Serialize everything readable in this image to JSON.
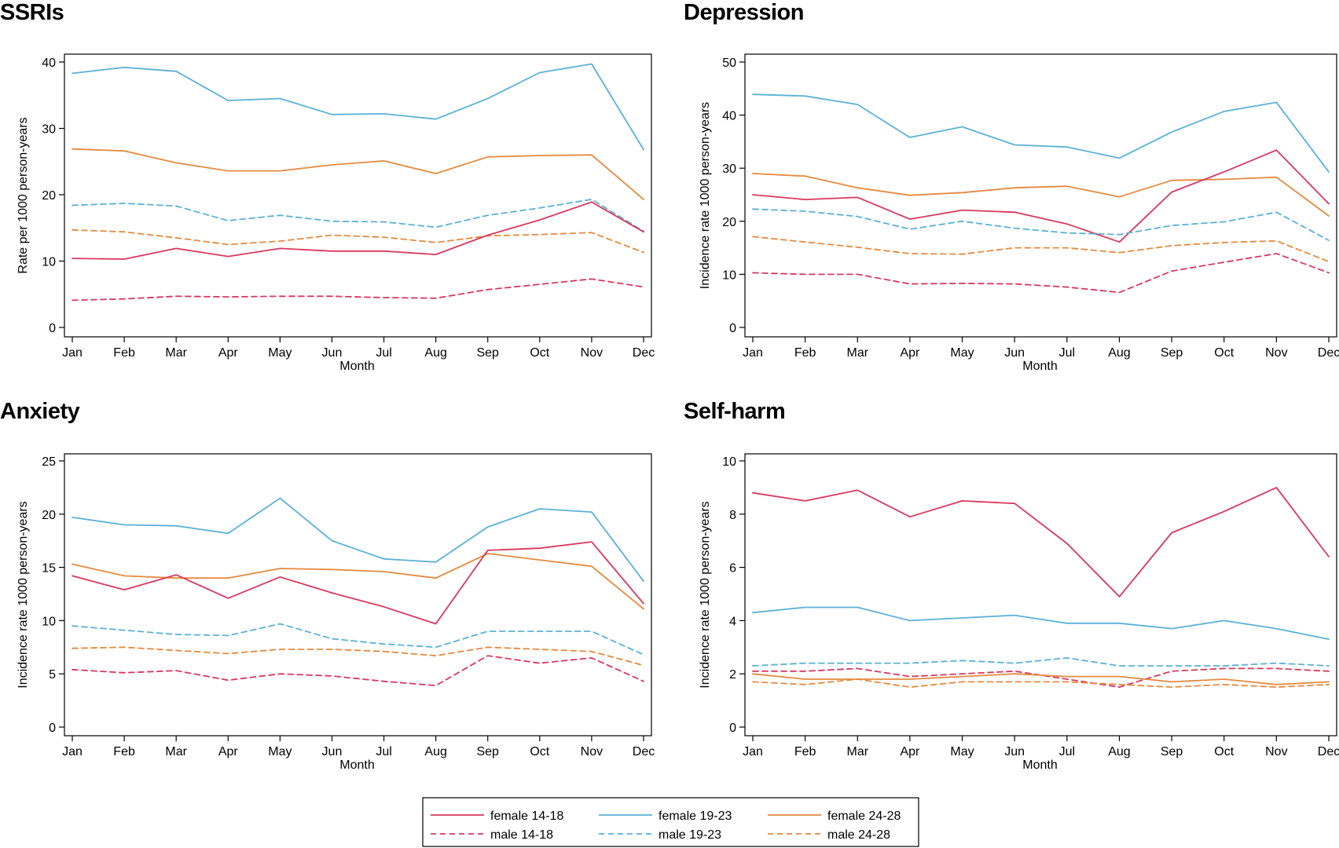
{
  "colors": {
    "female_14_18": "#d9385e",
    "male_14_18": "#d9385e",
    "female_19_23": "#5ab1d6",
    "male_19_23": "#5ab1d6",
    "female_24_28": "#e58a3e",
    "male_24_28": "#e58a3e"
  },
  "legend": {
    "items": [
      {
        "key": "female_14_18",
        "label": "female 14-18",
        "dashed": false
      },
      {
        "key": "female_19_23",
        "label": "female 19-23",
        "dashed": false
      },
      {
        "key": "female_24_28",
        "label": "female 24-28",
        "dashed": false
      },
      {
        "key": "male_14_18",
        "label": "male 14-18",
        "dashed": true
      },
      {
        "key": "male_19_23",
        "label": "male 19-23",
        "dashed": true
      },
      {
        "key": "male_24_28",
        "label": "male 24-28",
        "dashed": true
      }
    ]
  },
  "chart_data": [
    {
      "type": "line",
      "title": "SSRIs",
      "xlabel": "Month",
      "ylabel": "Rate per 1000 person-years",
      "ylim": [
        0,
        40
      ],
      "yticks": [
        0,
        10,
        20,
        30,
        40
      ],
      "categories": [
        "Jan",
        "Feb",
        "Mar",
        "Apr",
        "May",
        "Jun",
        "Jul",
        "Aug",
        "Sep",
        "Oct",
        "Nov",
        "Dec"
      ],
      "series": [
        {
          "key": "female_19_23",
          "name": "female 19-23",
          "dashed": false,
          "values": [
            38.3,
            39.2,
            38.6,
            34.2,
            34.5,
            32.1,
            32.2,
            31.4,
            34.5,
            38.4,
            39.7,
            26.8
          ]
        },
        {
          "key": "female_24_28",
          "name": "female 24-28",
          "dashed": false,
          "values": [
            26.9,
            26.6,
            24.8,
            23.6,
            23.6,
            24.5,
            25.1,
            23.2,
            25.7,
            25.9,
            26.0,
            19.3
          ]
        },
        {
          "key": "male_19_23",
          "name": "male 19-23",
          "dashed": true,
          "values": [
            18.4,
            18.7,
            18.3,
            16.1,
            16.9,
            16.0,
            15.9,
            15.1,
            16.9,
            18.0,
            19.3,
            14.5
          ]
        },
        {
          "key": "male_24_28",
          "name": "male 24-28",
          "dashed": true,
          "values": [
            14.7,
            14.4,
            13.5,
            12.5,
            13.0,
            13.9,
            13.6,
            12.8,
            13.8,
            14.0,
            14.3,
            11.3
          ]
        },
        {
          "key": "female_14_18",
          "name": "female 14-18",
          "dashed": false,
          "values": [
            10.4,
            10.3,
            11.9,
            10.7,
            11.9,
            11.5,
            11.5,
            11.0,
            13.9,
            16.2,
            18.9,
            14.4
          ]
        },
        {
          "key": "male_14_18",
          "name": "male 14-18",
          "dashed": true,
          "values": [
            4.1,
            4.3,
            4.7,
            4.6,
            4.7,
            4.7,
            4.5,
            4.4,
            5.7,
            6.5,
            7.3,
            6.1
          ]
        }
      ]
    },
    {
      "type": "line",
      "title": "Depression",
      "xlabel": "Month",
      "ylabel": "Incidence rate 1000 person-years",
      "ylim": [
        0,
        50
      ],
      "yticks": [
        0,
        10,
        20,
        30,
        40,
        50
      ],
      "categories": [
        "Jan",
        "Feb",
        "Mar",
        "Apr",
        "May",
        "Jun",
        "Jul",
        "Aug",
        "Sep",
        "Oct",
        "Nov",
        "Dec"
      ],
      "series": [
        {
          "key": "female_19_23",
          "name": "female 19-23",
          "dashed": false,
          "values": [
            43.9,
            43.6,
            42.0,
            35.8,
            37.8,
            34.4,
            34.0,
            31.9,
            36.8,
            40.7,
            42.4,
            29.3
          ]
        },
        {
          "key": "female_24_28",
          "name": "female 24-28",
          "dashed": false,
          "values": [
            29.0,
            28.5,
            26.3,
            24.9,
            25.4,
            26.3,
            26.6,
            24.6,
            27.7,
            27.9,
            28.3,
            21.0
          ]
        },
        {
          "key": "female_14_18",
          "name": "female 14-18",
          "dashed": false,
          "values": [
            25.0,
            24.1,
            24.5,
            20.4,
            22.1,
            21.7,
            19.5,
            16.1,
            25.5,
            29.3,
            33.4,
            23.3
          ]
        },
        {
          "key": "male_19_23",
          "name": "male 19-23",
          "dashed": true,
          "values": [
            22.3,
            21.9,
            20.9,
            18.5,
            20.0,
            18.7,
            17.8,
            17.5,
            19.2,
            19.9,
            21.7,
            16.4
          ]
        },
        {
          "key": "male_24_28",
          "name": "male 24-28",
          "dashed": true,
          "values": [
            17.1,
            16.1,
            15.1,
            13.9,
            13.8,
            15.0,
            15.0,
            14.1,
            15.4,
            16.0,
            16.3,
            12.4
          ]
        },
        {
          "key": "male_14_18",
          "name": "male 14-18",
          "dashed": true,
          "values": [
            10.3,
            10.0,
            10.0,
            8.2,
            8.3,
            8.2,
            7.6,
            6.6,
            10.6,
            12.3,
            13.9,
            10.3
          ]
        }
      ]
    },
    {
      "type": "line",
      "title": "Anxiety",
      "xlabel": "Month",
      "ylabel": "Incidence rate 1000 person-years",
      "ylim": [
        0,
        25
      ],
      "yticks": [
        0,
        5,
        10,
        15,
        20,
        25
      ],
      "categories": [
        "Jan",
        "Feb",
        "Mar",
        "Apr",
        "May",
        "Jun",
        "Jul",
        "Aug",
        "Sep",
        "Oct",
        "Nov",
        "Dec"
      ],
      "series": [
        {
          "key": "female_19_23",
          "name": "female 19-23",
          "dashed": false,
          "values": [
            19.7,
            19.0,
            18.9,
            18.2,
            21.5,
            17.5,
            15.8,
            15.5,
            18.8,
            20.5,
            20.2,
            13.7
          ]
        },
        {
          "key": "female_24_28",
          "name": "female 24-28",
          "dashed": false,
          "values": [
            15.3,
            14.2,
            14.0,
            14.0,
            14.9,
            14.8,
            14.6,
            14.0,
            16.3,
            15.7,
            15.1,
            11.1
          ]
        },
        {
          "key": "female_14_18",
          "name": "female 14-18",
          "dashed": false,
          "values": [
            14.2,
            12.9,
            14.3,
            12.1,
            14.1,
            12.6,
            11.3,
            9.7,
            16.6,
            16.8,
            17.4,
            11.6
          ]
        },
        {
          "key": "male_19_23",
          "name": "male 19-23",
          "dashed": true,
          "values": [
            9.5,
            9.1,
            8.7,
            8.6,
            9.7,
            8.3,
            7.8,
            7.5,
            9.0,
            9.0,
            9.0,
            6.8
          ]
        },
        {
          "key": "male_24_28",
          "name": "male 24-28",
          "dashed": true,
          "values": [
            7.4,
            7.5,
            7.2,
            6.9,
            7.3,
            7.3,
            7.1,
            6.7,
            7.5,
            7.3,
            7.1,
            5.8
          ]
        },
        {
          "key": "male_14_18",
          "name": "male 14-18",
          "dashed": true,
          "values": [
            5.4,
            5.1,
            5.3,
            4.4,
            5.0,
            4.8,
            4.3,
            3.9,
            6.7,
            6.0,
            6.5,
            4.3
          ]
        }
      ]
    },
    {
      "type": "line",
      "title": "Self-harm",
      "xlabel": "Month",
      "ylabel": "Incidence rate 1000 person-years",
      "ylim": [
        0,
        10
      ],
      "yticks": [
        0,
        2,
        4,
        6,
        8,
        10
      ],
      "categories": [
        "Jan",
        "Feb",
        "Mar",
        "Apr",
        "May",
        "Jun",
        "Jul",
        "Aug",
        "Sep",
        "Oct",
        "Nov",
        "Dec"
      ],
      "series": [
        {
          "key": "female_14_18",
          "name": "female 14-18",
          "dashed": false,
          "values": [
            8.8,
            8.5,
            8.9,
            7.9,
            8.5,
            8.4,
            6.9,
            4.9,
            7.3,
            8.1,
            9.0,
            6.4
          ]
        },
        {
          "key": "female_19_23",
          "name": "female 19-23",
          "dashed": false,
          "values": [
            4.3,
            4.5,
            4.5,
            4.0,
            4.1,
            4.2,
            3.9,
            3.9,
            3.7,
            4.0,
            3.7,
            3.3
          ]
        },
        {
          "key": "male_19_23",
          "name": "male 19-23",
          "dashed": true,
          "values": [
            2.3,
            2.4,
            2.4,
            2.4,
            2.5,
            2.4,
            2.6,
            2.3,
            2.3,
            2.3,
            2.4,
            2.3
          ]
        },
        {
          "key": "male_14_18",
          "name": "male 14-18",
          "dashed": true,
          "values": [
            2.1,
            2.1,
            2.2,
            1.9,
            2.0,
            2.1,
            1.8,
            1.5,
            2.1,
            2.2,
            2.2,
            2.1
          ]
        },
        {
          "key": "female_24_28",
          "name": "female 24-28",
          "dashed": false,
          "values": [
            2.0,
            1.8,
            1.8,
            1.8,
            1.9,
            2.0,
            1.9,
            1.9,
            1.7,
            1.8,
            1.6,
            1.7
          ]
        },
        {
          "key": "male_24_28",
          "name": "male 24-28",
          "dashed": true,
          "values": [
            1.7,
            1.6,
            1.8,
            1.5,
            1.7,
            1.7,
            1.7,
            1.6,
            1.5,
            1.6,
            1.5,
            1.6
          ]
        }
      ]
    }
  ]
}
